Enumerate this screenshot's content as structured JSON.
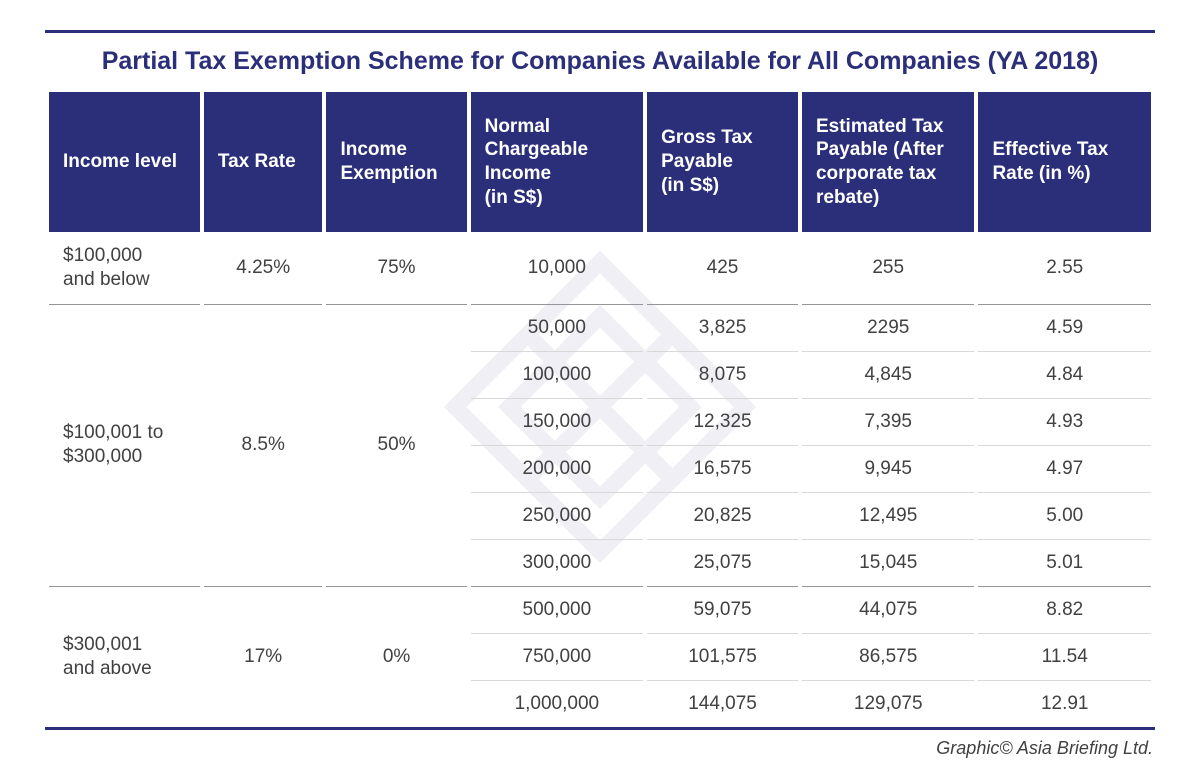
{
  "title": "Partial Tax Exemption Scheme for Companies Available for All Companies (YA 2018)",
  "columns": [
    "Income level",
    "Tax Rate",
    "Income Exemption",
    "Normal Chargeable Income\n(in S$)",
    "Gross Tax Payable\n(in S$)",
    "Estimated Tax Payable (After corporate tax rebate)",
    "Effective Tax Rate (in %)"
  ],
  "groups": [
    {
      "income_level": "$100,000 and below",
      "tax_rate": "4.25%",
      "income_exemption": "75%",
      "rows": [
        {
          "nci": "10,000",
          "gross": "425",
          "est": "255",
          "eff": "2.55"
        }
      ]
    },
    {
      "income_level": "$100,001 to $300,000",
      "tax_rate": "8.5%",
      "income_exemption": "50%",
      "rows": [
        {
          "nci": "50,000",
          "gross": "3,825",
          "est": "2295",
          "eff": "4.59"
        },
        {
          "nci": "100,000",
          "gross": "8,075",
          "est": "4,845",
          "eff": "4.84"
        },
        {
          "nci": "150,000",
          "gross": "12,325",
          "est": "7,395",
          "eff": "4.93"
        },
        {
          "nci": "200,000",
          "gross": "16,575",
          "est": "9,945",
          "eff": "4.97"
        },
        {
          "nci": "250,000",
          "gross": "20,825",
          "est": "12,495",
          "eff": "5.00"
        },
        {
          "nci": "300,000",
          "gross": "25,075",
          "est": "15,045",
          "eff": "5.01"
        }
      ]
    },
    {
      "income_level": "$300,001 and above",
      "tax_rate": "17%",
      "income_exemption": "0%",
      "rows": [
        {
          "nci": "500,000",
          "gross": "59,075",
          "est": "44,075",
          "eff": "8.82"
        },
        {
          "nci": "750,000",
          "gross": "101,575",
          "est": "86,575",
          "eff": "11.54"
        },
        {
          "nci": "1,000,000",
          "gross": "144,075",
          "est": "129,075",
          "eff": "12.91"
        }
      ]
    }
  ],
  "credit": "Graphic© Asia Briefing Ltd.",
  "style": {
    "header_bg": "#2b2e79",
    "header_fg": "#ffffff",
    "title_color": "#2b2e79",
    "cell_fg": "#414042",
    "rule_outer": "#2b2e79",
    "rule_row": "#d8d8d8",
    "rule_group": "#939598",
    "title_fontsize": 25,
    "header_fontsize": 19,
    "cell_fontsize": 19,
    "col_widths_pct": [
      14,
      11,
      13,
      16,
      14,
      16,
      16
    ]
  }
}
